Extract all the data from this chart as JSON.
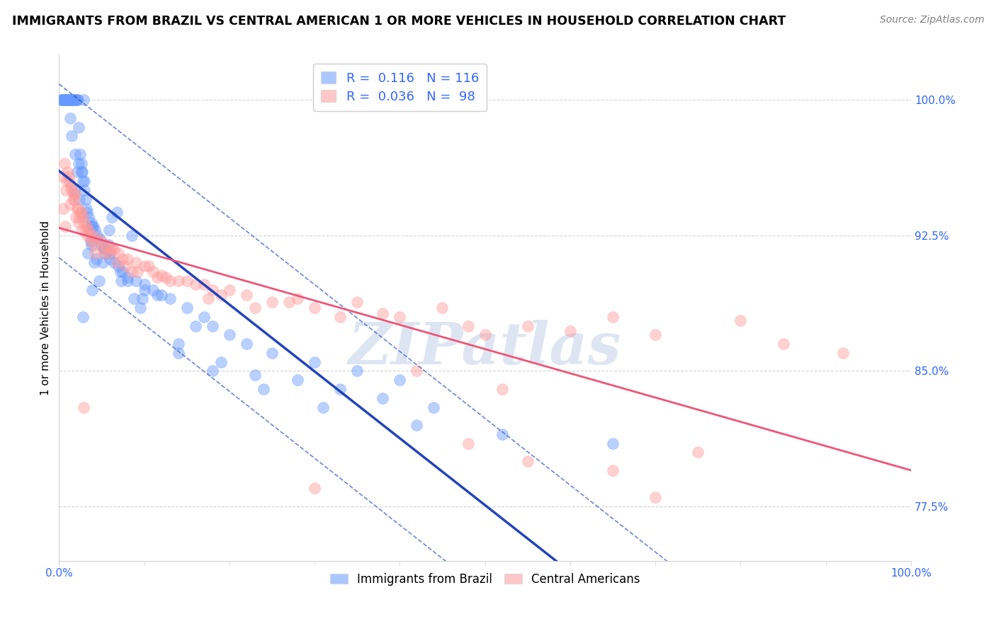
{
  "title": "IMMIGRANTS FROM BRAZIL VS CENTRAL AMERICAN 1 OR MORE VEHICLES IN HOUSEHOLD CORRELATION CHART",
  "source": "Source: ZipAtlas.com",
  "ylabel": "1 or more Vehicles in Household",
  "xlim": [
    0.0,
    100.0
  ],
  "ylim": [
    74.5,
    102.5
  ],
  "yticks": [
    77.5,
    85.0,
    92.5,
    100.0
  ],
  "ytick_labels": [
    "77.5%",
    "85.0%",
    "92.5%",
    "100.0%"
  ],
  "legend_brazil_R": "0.116",
  "legend_brazil_N": "116",
  "legend_central_R": "0.036",
  "legend_central_N": "98",
  "brazil_color": "#6699FF",
  "central_color": "#FF9999",
  "brazil_line_color": "#2244BB",
  "central_line_color": "#EE5577",
  "stat_color": "#3366FF",
  "watermark": "ZIPatlas",
  "watermark_color": "#AABBDD",
  "brazil_scatter_x": [
    0.3,
    0.4,
    0.5,
    0.6,
    0.7,
    0.9,
    1.0,
    1.1,
    1.2,
    1.3,
    1.5,
    1.6,
    1.7,
    1.8,
    2.0,
    2.1,
    2.2,
    2.3,
    2.5,
    2.6,
    2.7,
    2.8,
    3.0,
    3.1,
    3.2,
    3.3,
    3.5,
    3.8,
    4.0,
    4.2,
    4.5,
    4.8,
    5.0,
    5.2,
    5.5,
    6.0,
    6.5,
    7.0,
    7.5,
    8.0,
    9.0,
    10.0,
    11.0,
    12.0,
    13.0,
    15.0,
    17.0,
    18.0,
    20.0,
    22.0,
    25.0,
    30.0,
    35.0,
    40.0,
    8.5,
    2.9,
    1.4,
    0.8,
    3.6,
    4.1,
    5.8,
    6.2,
    2.4,
    1.9,
    3.4,
    4.7,
    2.1,
    1.5,
    2.8,
    3.9,
    5.3,
    7.2,
    8.8,
    0.6,
    1.1,
    1.8,
    2.3,
    3.7,
    4.4,
    5.9,
    6.8,
    9.5,
    11.5,
    14.0,
    16.0,
    19.0,
    23.0,
    28.0,
    33.0,
    38.0,
    44.0,
    0.2,
    1.0,
    2.0,
    3.0,
    4.0,
    6.0,
    8.0,
    10.0,
    14.0,
    18.0,
    24.0,
    31.0,
    42.0,
    52.0,
    65.0,
    0.5,
    1.3,
    2.6,
    3.8,
    5.1,
    7.3,
    9.8
  ],
  "brazil_scatter_y": [
    100.0,
    100.0,
    100.0,
    100.0,
    100.0,
    100.0,
    100.0,
    100.0,
    100.0,
    100.0,
    100.0,
    100.0,
    100.0,
    100.0,
    100.0,
    100.0,
    100.0,
    98.5,
    97.0,
    96.5,
    96.0,
    95.5,
    95.0,
    94.5,
    94.0,
    93.8,
    93.5,
    93.2,
    93.0,
    92.8,
    92.5,
    92.3,
    92.0,
    91.8,
    91.5,
    91.2,
    91.0,
    90.8,
    90.5,
    90.2,
    90.0,
    89.8,
    89.5,
    89.2,
    89.0,
    88.5,
    88.0,
    87.5,
    87.0,
    86.5,
    86.0,
    85.5,
    85.0,
    84.5,
    92.5,
    100.0,
    100.0,
    100.0,
    93.0,
    91.0,
    92.0,
    93.5,
    94.5,
    97.0,
    91.5,
    90.0,
    96.0,
    98.0,
    88.0,
    89.5,
    91.8,
    90.5,
    89.0,
    100.0,
    100.0,
    95.0,
    96.5,
    92.2,
    91.2,
    92.8,
    93.8,
    88.5,
    89.2,
    86.0,
    87.5,
    85.5,
    84.8,
    84.5,
    84.0,
    83.5,
    83.0,
    100.0,
    100.0,
    100.0,
    95.5,
    93.0,
    91.5,
    90.0,
    89.5,
    86.5,
    85.0,
    84.0,
    83.0,
    82.0,
    81.5,
    81.0,
    100.0,
    99.0,
    96.0,
    92.0,
    91.0,
    90.0,
    89.0
  ],
  "central_scatter_x": [
    0.5,
    0.8,
    1.0,
    1.2,
    1.5,
    1.8,
    2.0,
    2.2,
    2.5,
    2.8,
    3.0,
    3.2,
    3.5,
    4.0,
    4.5,
    5.0,
    5.5,
    6.0,
    6.5,
    7.0,
    8.0,
    9.0,
    10.0,
    11.0,
    12.0,
    14.0,
    16.0,
    18.0,
    22.0,
    28.0,
    35.0,
    45.0,
    65.0,
    80.0,
    1.3,
    1.7,
    2.3,
    2.7,
    3.3,
    4.2,
    5.2,
    6.8,
    8.5,
    12.5,
    17.0,
    25.0,
    38.0,
    55.0,
    0.6,
    1.1,
    1.9,
    2.6,
    3.8,
    5.8,
    7.5,
    10.5,
    15.0,
    20.0,
    30.0,
    50.0,
    0.9,
    1.4,
    2.1,
    3.1,
    4.1,
    6.2,
    9.2,
    13.0,
    19.0,
    27.0,
    40.0,
    60.0,
    42.0,
    52.0,
    0.4,
    1.6,
    2.4,
    3.6,
    5.3,
    7.8,
    11.5,
    17.5,
    23.0,
    33.0,
    48.0,
    70.0,
    85.0,
    92.0,
    30.0,
    70.0,
    55.0,
    65.0,
    48.0,
    75.0,
    0.7,
    2.9
  ],
  "central_scatter_y": [
    94.0,
    95.0,
    96.0,
    95.5,
    95.0,
    94.5,
    93.5,
    94.0,
    93.8,
    93.5,
    93.2,
    93.0,
    92.8,
    92.5,
    92.3,
    92.2,
    92.0,
    91.8,
    91.7,
    91.5,
    91.2,
    91.0,
    90.8,
    90.5,
    90.3,
    90.0,
    89.8,
    89.5,
    89.2,
    89.0,
    88.8,
    88.5,
    88.0,
    87.8,
    94.2,
    94.8,
    93.2,
    92.8,
    92.5,
    91.5,
    91.8,
    91.0,
    90.5,
    90.2,
    89.8,
    88.8,
    88.2,
    87.5,
    96.5,
    95.8,
    94.8,
    93.8,
    92.2,
    91.5,
    91.2,
    90.8,
    90.0,
    89.5,
    88.5,
    87.0,
    95.5,
    95.2,
    94.0,
    92.8,
    92.0,
    91.8,
    90.5,
    90.0,
    89.2,
    88.8,
    88.0,
    87.2,
    85.0,
    84.0,
    95.8,
    94.5,
    93.5,
    92.5,
    91.5,
    90.8,
    90.2,
    89.0,
    88.5,
    88.0,
    87.5,
    87.0,
    86.5,
    86.0,
    78.5,
    78.0,
    80.0,
    79.5,
    81.0,
    80.5,
    93.0,
    83.0
  ]
}
